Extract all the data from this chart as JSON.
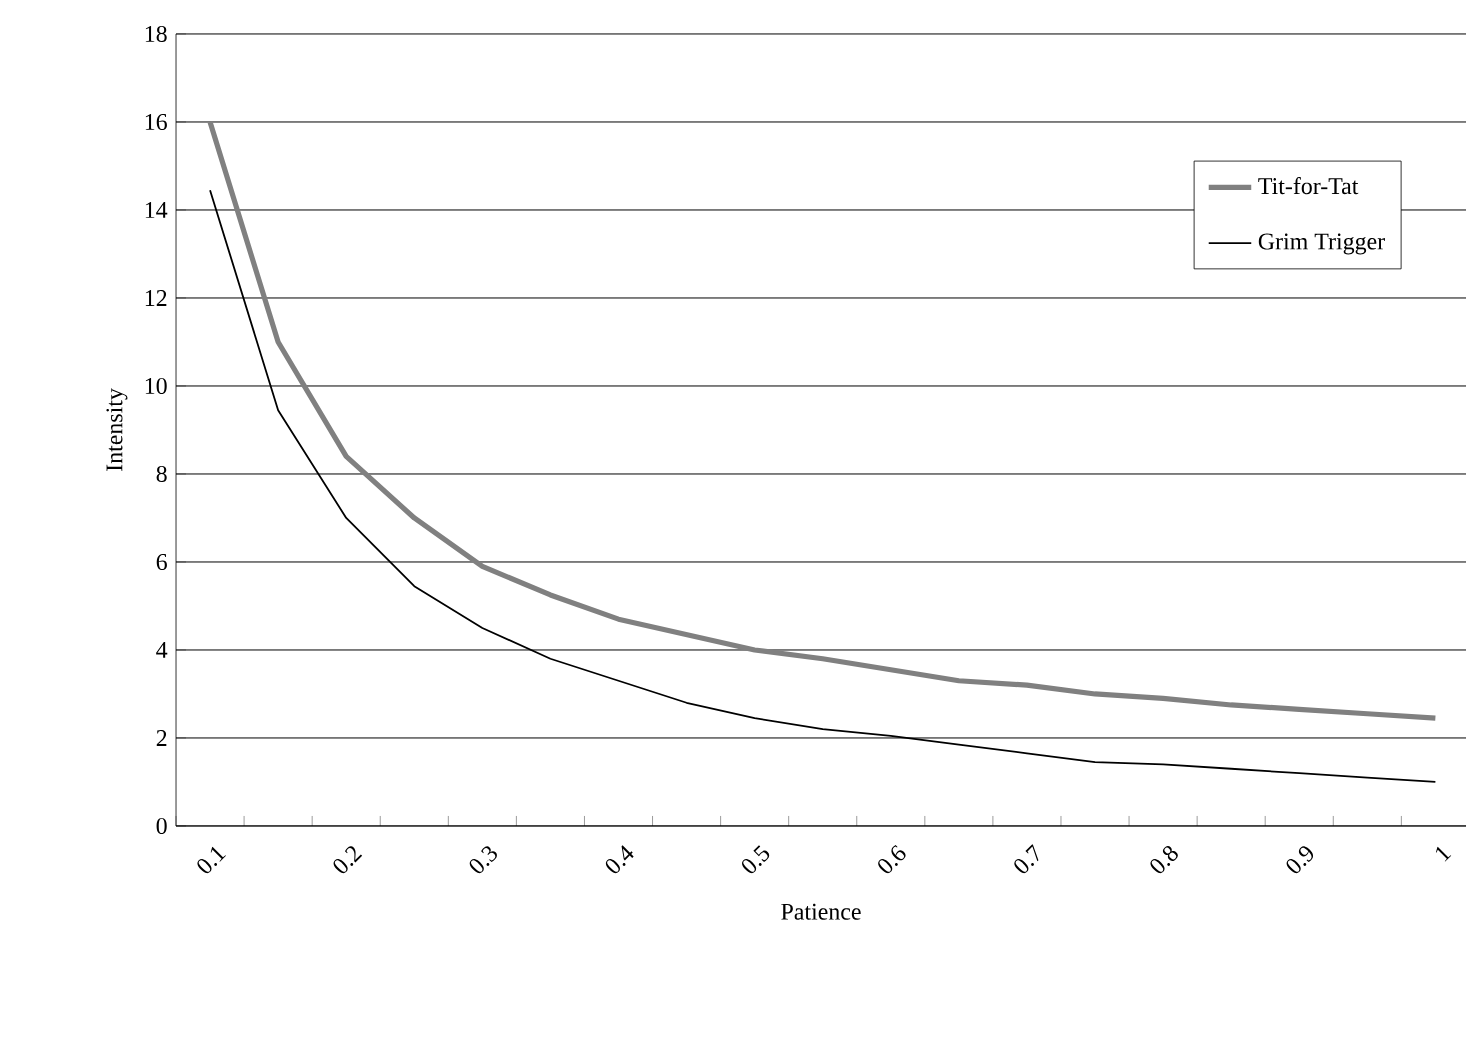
{
  "chart_data": {
    "type": "line",
    "xlabel": "Patience",
    "ylabel": "Intensity",
    "categories": [
      "0.1",
      null,
      "0.2",
      null,
      "0.3",
      null,
      "0.4",
      null,
      "0.5",
      null,
      "0.6",
      null,
      "0.7",
      null,
      "0.8",
      null,
      "0.9",
      null,
      "1"
    ],
    "series": [
      {
        "name": "Tit-for-Tat",
        "color": "#808080",
        "values": [
          16.0,
          11.0,
          8.4,
          7.0,
          5.9,
          5.25,
          4.7,
          4.35,
          4.0,
          3.8,
          3.55,
          3.3,
          3.2,
          3.0,
          2.9,
          2.75,
          2.65,
          2.55,
          2.45
        ]
      },
      {
        "name": "Grim Trigger",
        "color": "#000000",
        "values": [
          14.45,
          9.45,
          7.0,
          5.45,
          4.5,
          3.8,
          3.3,
          2.8,
          2.45,
          2.2,
          2.05,
          1.85,
          1.65,
          1.45,
          1.4,
          1.3,
          1.2,
          1.1,
          1.0
        ]
      }
    ],
    "ylim": [
      0,
      18
    ],
    "yticks": [
      0,
      2,
      4,
      6,
      8,
      10,
      12,
      14,
      16,
      18
    ],
    "grid": "y",
    "legend": "right",
    "marker": "none",
    "line_style": "solid"
  }
}
